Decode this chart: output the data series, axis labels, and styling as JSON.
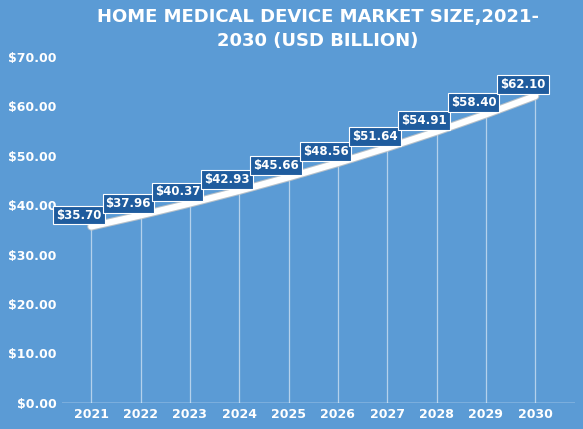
{
  "title": "HOME MEDICAL DEVICE MARKET SIZE,2021-\n2030 (USD BILLION)",
  "years": [
    2021,
    2022,
    2023,
    2024,
    2025,
    2026,
    2027,
    2028,
    2029,
    2030
  ],
  "values": [
    35.7,
    37.96,
    40.37,
    42.93,
    45.66,
    48.56,
    51.64,
    54.91,
    58.4,
    62.1
  ],
  "labels": [
    "$35.70",
    "$37.96",
    "$40.37",
    "$42.93",
    "$45.66",
    "$48.56",
    "$51.64",
    "$54.91",
    "$58.40",
    "$62.10"
  ],
  "background_color": "#5b9bd5",
  "label_box_color": "#1f5c9e",
  "label_text_color": "#ffffff",
  "axis_text_color": "#ffffff",
  "title_color": "#ffffff",
  "ylim": [
    0,
    70
  ],
  "yticks": [
    0,
    10,
    20,
    30,
    40,
    50,
    60,
    70
  ],
  "ytick_labels": [
    "$0.00",
    "$10.00",
    "$20.00",
    "$30.00",
    "$40.00",
    "$50.00",
    "$60.00",
    "$70.00"
  ],
  "title_fontsize": 13,
  "tick_fontsize": 9,
  "label_fontsize": 8.5,
  "xlim_left": 2020.4,
  "xlim_right": 2030.8
}
